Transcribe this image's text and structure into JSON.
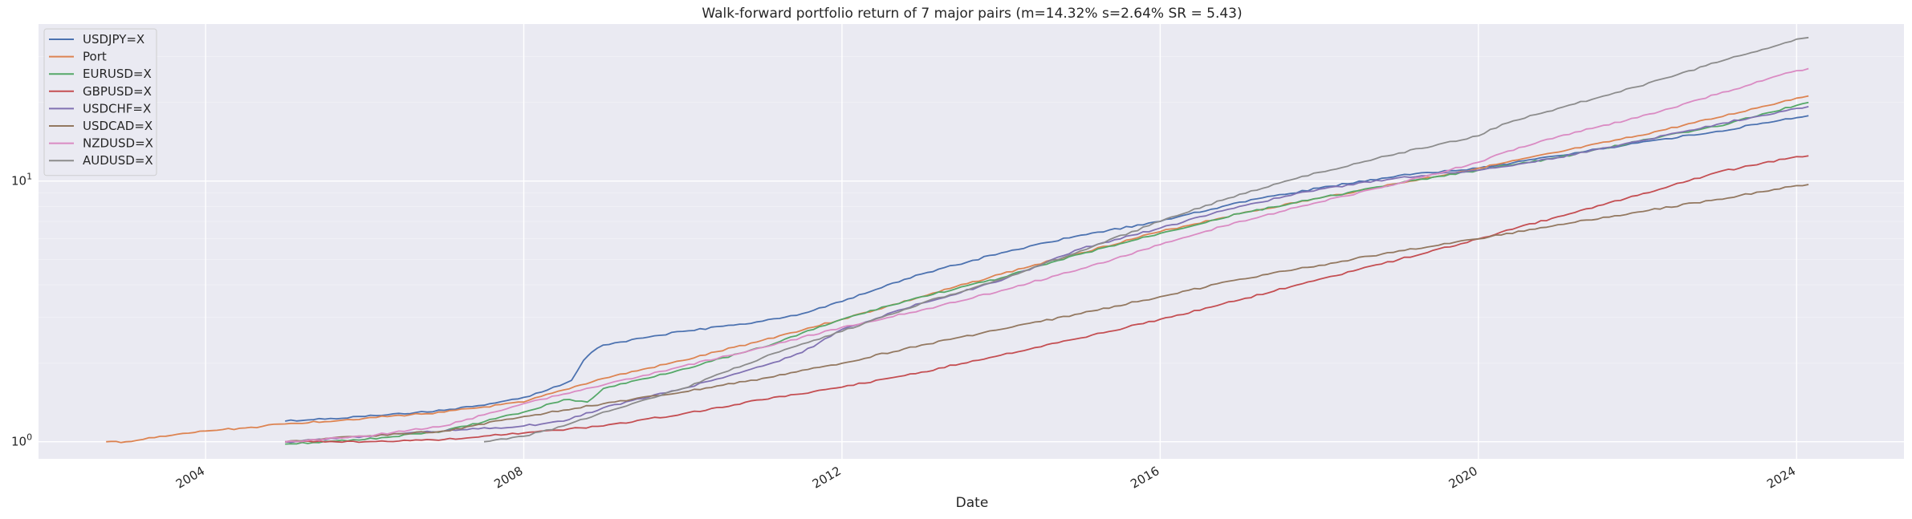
{
  "chart_data": {
    "type": "line",
    "title": "Walk-forward portfolio return of 7 major pairs (m=14.32% s=2.64% SR = 5.43)",
    "xlabel": "Date",
    "ylabel": "",
    "yscale": "log",
    "xlim": [
      2001.9,
      2025.35
    ],
    "ylim": [
      0.86,
      40
    ],
    "grid": true,
    "legend": "upper-left",
    "x_ticks": [
      "2004",
      "2008",
      "2012",
      "2016",
      "2020",
      "2024"
    ],
    "y_ticks": [
      {
        "value": 1,
        "base": "10",
        "exp": "0"
      },
      {
        "value": 10,
        "base": "10",
        "exp": "1"
      }
    ],
    "series": [
      {
        "name": "USDJPY=X",
        "color": "#4c72b0",
        "x": [
          2005.0,
          2006.0,
          2007.0,
          2007.5,
          2008.0,
          2008.3,
          2008.6,
          2008.75,
          2008.85,
          2009.0,
          2009.5,
          2010.0,
          2011.0,
          2011.5,
          2012.0,
          2012.5,
          2013.0,
          2014.0,
          2015.0,
          2016.0,
          2017.0,
          2018.0,
          2019.0,
          2020.0,
          2021.0,
          2022.0,
          2023.0,
          2023.5,
          2024.0,
          2024.15
        ],
        "y": [
          1.2,
          1.25,
          1.32,
          1.38,
          1.48,
          1.58,
          1.72,
          2.05,
          2.2,
          2.35,
          2.5,
          2.65,
          2.9,
          3.1,
          3.45,
          3.9,
          4.4,
          5.3,
          6.2,
          7.0,
          8.3,
          9.4,
          10.5,
          11.2,
          12.5,
          14.0,
          15.5,
          16.5,
          17.5,
          17.8
        ]
      },
      {
        "name": "Port",
        "color": "#dd8452",
        "x": [
          2002.75,
          2003.0,
          2003.5,
          2004.0,
          2004.5,
          2005.0,
          2006.0,
          2007.0,
          2008.0,
          2008.5,
          2009.0,
          2010.0,
          2011.0,
          2012.0,
          2013.0,
          2014.0,
          2015.0,
          2016.0,
          2017.0,
          2018.0,
          2019.0,
          2020.0,
          2021.0,
          2022.0,
          2023.0,
          2024.0,
          2024.15
        ],
        "y": [
          1.0,
          1.0,
          1.05,
          1.1,
          1.13,
          1.17,
          1.23,
          1.3,
          1.42,
          1.58,
          1.75,
          2.05,
          2.45,
          2.95,
          3.6,
          4.4,
          5.3,
          6.4,
          7.5,
          8.6,
          9.8,
          11.2,
          12.9,
          14.9,
          17.5,
          20.8,
          21.2
        ]
      },
      {
        "name": "EURUSD=X",
        "color": "#55a868",
        "x": [
          2005.0,
          2006.0,
          2007.0,
          2008.0,
          2008.5,
          2008.8,
          2009.0,
          2010.0,
          2011.0,
          2012.0,
          2013.0,
          2014.0,
          2015.0,
          2016.0,
          2017.0,
          2018.0,
          2019.0,
          2020.0,
          2021.0,
          2022.0,
          2023.0,
          2024.0,
          2024.15
        ],
        "y": [
          0.98,
          1.02,
          1.1,
          1.3,
          1.45,
          1.42,
          1.6,
          1.9,
          2.3,
          2.95,
          3.6,
          4.25,
          5.25,
          6.3,
          7.5,
          8.6,
          9.8,
          11.0,
          12.3,
          14.2,
          16.2,
          19.5,
          20.0
        ]
      },
      {
        "name": "GBPUSD=X",
        "color": "#c44e52",
        "x": [
          2005.0,
          2006.0,
          2007.0,
          2008.0,
          2009.0,
          2010.0,
          2011.0,
          2012.0,
          2013.0,
          2014.0,
          2015.0,
          2016.0,
          2017.0,
          2018.0,
          2019.0,
          2020.0,
          2021.0,
          2022.0,
          2023.0,
          2024.0,
          2024.15
        ],
        "y": [
          1.0,
          1.0,
          1.02,
          1.08,
          1.15,
          1.28,
          1.45,
          1.62,
          1.85,
          2.15,
          2.5,
          2.95,
          3.5,
          4.2,
          5.0,
          6.0,
          7.3,
          8.8,
          10.8,
          12.4,
          12.5
        ]
      },
      {
        "name": "USDCHF=X",
        "color": "#8172b3",
        "x": [
          2005.0,
          2006.0,
          2007.0,
          2008.0,
          2008.5,
          2009.0,
          2010.0,
          2011.0,
          2011.5,
          2012.0,
          2013.0,
          2014.0,
          2015.0,
          2016.0,
          2017.0,
          2018.0,
          2019.0,
          2020.0,
          2021.0,
          2022.0,
          2023.0,
          2024.0,
          2024.15
        ],
        "y": [
          1.0,
          1.05,
          1.1,
          1.15,
          1.2,
          1.35,
          1.6,
          1.95,
          2.2,
          2.7,
          3.4,
          4.15,
          5.5,
          6.6,
          8.0,
          9.3,
          10.3,
          11.0,
          12.3,
          14.2,
          16.5,
          19.0,
          19.3
        ]
      },
      {
        "name": "USDCAD=X",
        "color": "#937860",
        "x": [
          2005.0,
          2006.0,
          2007.0,
          2008.0,
          2009.0,
          2010.0,
          2011.0,
          2012.0,
          2013.0,
          2014.0,
          2015.0,
          2016.0,
          2017.0,
          2018.0,
          2019.0,
          2020.0,
          2021.0,
          2022.0,
          2023.0,
          2024.0,
          2024.15
        ],
        "y": [
          1.0,
          1.05,
          1.1,
          1.25,
          1.4,
          1.55,
          1.75,
          2.0,
          2.35,
          2.7,
          3.1,
          3.6,
          4.2,
          4.75,
          5.4,
          6.0,
          6.8,
          7.6,
          8.5,
          9.6,
          9.7
        ]
      },
      {
        "name": "NZDUSD=X",
        "color": "#da8bc3",
        "x": [
          2005.0,
          2006.0,
          2007.0,
          2008.0,
          2009.0,
          2010.0,
          2011.0,
          2012.0,
          2013.0,
          2014.0,
          2015.0,
          2016.0,
          2017.0,
          2018.0,
          2019.0,
          2020.0,
          2020.3,
          2021.0,
          2022.0,
          2023.0,
          2024.0,
          2024.15
        ],
        "y": [
          1.0,
          1.05,
          1.15,
          1.4,
          1.65,
          1.95,
          2.3,
          2.75,
          3.2,
          3.8,
          4.6,
          5.7,
          7.0,
          8.3,
          9.8,
          11.8,
          12.8,
          14.8,
          17.5,
          21.5,
          26.5,
          27.0
        ]
      },
      {
        "name": "AUDUSD=X",
        "color": "#8c8c8c",
        "x": [
          2007.5,
          2008.0,
          2008.5,
          2009.0,
          2010.0,
          2011.0,
          2012.0,
          2013.0,
          2014.0,
          2015.0,
          2016.0,
          2017.0,
          2018.0,
          2019.0,
          2020.0,
          2020.3,
          2021.0,
          2022.0,
          2023.0,
          2024.0,
          2024.15
        ],
        "y": [
          1.0,
          1.05,
          1.15,
          1.3,
          1.6,
          2.1,
          2.65,
          3.4,
          4.2,
          5.4,
          7.0,
          8.9,
          10.8,
          12.8,
          14.9,
          16.5,
          19.0,
          23.0,
          28.5,
          35.0,
          35.5
        ]
      }
    ]
  }
}
